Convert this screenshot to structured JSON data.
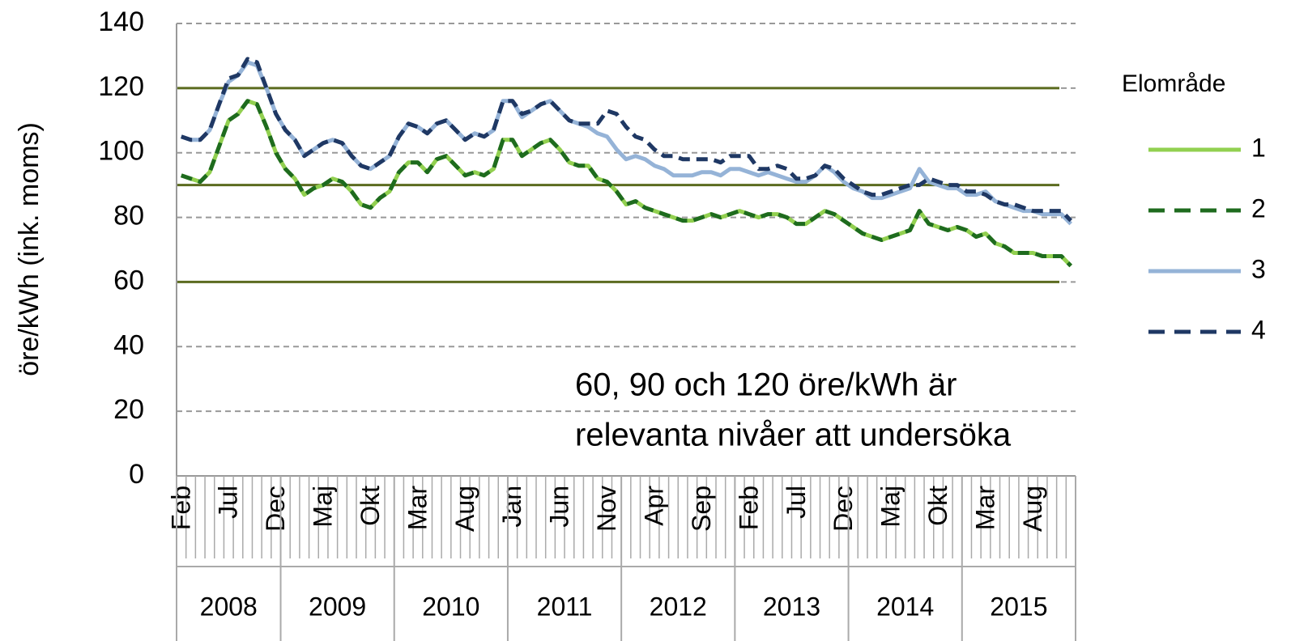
{
  "chart_data": {
    "type": "line",
    "ylabel": "öre/kWh (ink. moms)",
    "ylim": [
      0,
      140
    ],
    "yticks": [
      0,
      20,
      40,
      60,
      80,
      100,
      120,
      140
    ],
    "grid": true,
    "reference_lines": [
      60,
      90,
      120
    ],
    "reference_color": "#5b6b1f",
    "annotation": [
      "60, 90 och 120 öre/kWh är",
      "relevanta nivåer att undersöka"
    ],
    "legend_title": "Elområde",
    "legend": "right",
    "categories": [
      "Feb",
      null,
      null,
      null,
      null,
      "Jul",
      null,
      null,
      null,
      null,
      "Dec",
      null,
      null,
      null,
      null,
      "Maj",
      null,
      null,
      null,
      null,
      "Okt",
      null,
      null,
      null,
      null,
      "Mar",
      null,
      null,
      null,
      null,
      "Aug",
      null,
      null,
      null,
      null,
      "Jan",
      null,
      null,
      null,
      null,
      "Jun",
      null,
      null,
      null,
      null,
      "Nov",
      null,
      null,
      null,
      null,
      "Apr",
      null,
      null,
      null,
      null,
      "Sep",
      null,
      null,
      null,
      null,
      "Feb",
      null,
      null,
      null,
      null,
      "Jul",
      null,
      null,
      null,
      null,
      "Dec",
      null,
      null,
      null,
      null,
      "Maj",
      null,
      null,
      null,
      null,
      "Okt",
      null,
      null,
      null,
      null,
      "Mar",
      null,
      null,
      null,
      null,
      "Aug",
      null,
      null,
      null,
      null
    ],
    "years": [
      "2008",
      "2009",
      "2010",
      "2011",
      "2012",
      "2013",
      "2014",
      "2015"
    ],
    "series": [
      {
        "name": "1",
        "color": "#92d050",
        "dash": false,
        "values": [
          93,
          92,
          91,
          94,
          102,
          110,
          112,
          116,
          115,
          108,
          100,
          95,
          92,
          87,
          89,
          90,
          92,
          91,
          88,
          84,
          83,
          86,
          88,
          94,
          97,
          97,
          94,
          98,
          99,
          96,
          93,
          94,
          93,
          95,
          104,
          104,
          99,
          101,
          103,
          104,
          101,
          97,
          96,
          96,
          92,
          91,
          88,
          84,
          85,
          83,
          82,
          81,
          80,
          79,
          79,
          80,
          81,
          80,
          81,
          82,
          81,
          80,
          81,
          81,
          80,
          78,
          78,
          80,
          82,
          81,
          79,
          77,
          75,
          74,
          73,
          74,
          75,
          76,
          82,
          78,
          77,
          76,
          77,
          76,
          74,
          75,
          72,
          71,
          69,
          69,
          69,
          68,
          68,
          68,
          65
        ]
      },
      {
        "name": "2",
        "color": "#1e6b1e",
        "dash": true,
        "values": [
          93,
          92,
          91,
          94,
          102,
          110,
          112,
          116,
          115,
          108,
          100,
          95,
          92,
          87,
          89,
          90,
          92,
          91,
          88,
          84,
          83,
          86,
          88,
          94,
          97,
          97,
          94,
          98,
          99,
          96,
          93,
          94,
          93,
          95,
          104,
          104,
          99,
          101,
          103,
          104,
          101,
          97,
          96,
          96,
          92,
          91,
          88,
          84,
          85,
          83,
          82,
          81,
          80,
          79,
          79,
          80,
          81,
          80,
          81,
          82,
          81,
          80,
          81,
          81,
          80,
          78,
          78,
          80,
          82,
          81,
          79,
          77,
          75,
          74,
          73,
          74,
          75,
          76,
          82,
          78,
          77,
          76,
          77,
          76,
          74,
          75,
          72,
          71,
          69,
          69,
          69,
          68,
          68,
          68,
          65
        ]
      },
      {
        "name": "3",
        "color": "#95b3d7",
        "dash": false,
        "values": [
          105,
          104,
          104,
          107,
          115,
          122,
          124,
          128,
          127,
          120,
          112,
          107,
          104,
          99,
          101,
          103,
          104,
          103,
          99,
          96,
          95,
          97,
          99,
          105,
          109,
          108,
          106,
          109,
          110,
          107,
          104,
          106,
          105,
          107,
          116,
          116,
          111,
          113,
          115,
          116,
          113,
          110,
          109,
          108,
          106,
          105,
          101,
          98,
          99,
          98,
          96,
          95,
          93,
          93,
          93,
          94,
          94,
          93,
          95,
          95,
          94,
          93,
          94,
          93,
          92,
          91,
          91,
          93,
          96,
          94,
          91,
          89,
          88,
          86,
          86,
          87,
          88,
          89,
          95,
          91,
          90,
          89,
          89,
          87,
          87,
          88,
          85,
          84,
          83,
          82,
          82,
          81,
          81,
          81,
          78
        ]
      },
      {
        "name": "4",
        "color": "#1f3864",
        "dash": true,
        "values": [
          105,
          104,
          104,
          107,
          115,
          123,
          124,
          129,
          128,
          120,
          112,
          107,
          104,
          99,
          101,
          103,
          104,
          103,
          99,
          96,
          95,
          97,
          99,
          105,
          109,
          108,
          106,
          109,
          110,
          107,
          104,
          106,
          105,
          107,
          116,
          116,
          112,
          113,
          115,
          116,
          113,
          110,
          109,
          109,
          109,
          113,
          112,
          108,
          105,
          104,
          101,
          99,
          99,
          98,
          98,
          98,
          98,
          97,
          99,
          99,
          99,
          95,
          95,
          96,
          95,
          92,
          92,
          93,
          96,
          95,
          92,
          90,
          88,
          87,
          87,
          88,
          89,
          90,
          90,
          92,
          91,
          90,
          90,
          88,
          88,
          87,
          85,
          84,
          84,
          83,
          82,
          82,
          82,
          82,
          79
        ]
      }
    ]
  }
}
